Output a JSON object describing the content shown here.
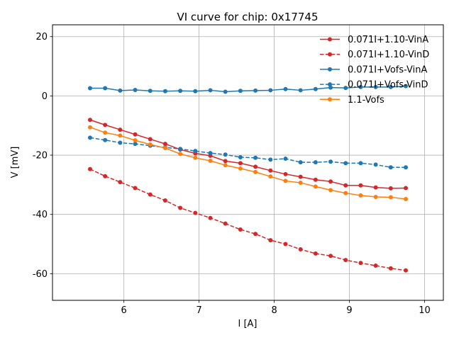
{
  "chart_data": {
    "type": "line",
    "title": "VI curve for chip: 0x17745",
    "xlabel": "I [A]",
    "ylabel": "V [mV]",
    "xlim": [
      5.05,
      10.25
    ],
    "ylim": [
      -69,
      24
    ],
    "xticks": [
      6,
      7,
      8,
      9,
      10
    ],
    "yticks": [
      -60,
      -40,
      -20,
      0,
      20
    ],
    "grid": true,
    "legend_position": "top-right",
    "x": [
      5.55,
      5.75,
      5.95,
      6.15,
      6.35,
      6.55,
      6.75,
      6.95,
      7.15,
      7.35,
      7.55,
      7.75,
      7.95,
      8.15,
      8.35,
      8.55,
      8.75,
      8.95,
      9.15,
      9.35,
      9.55,
      9.75
    ],
    "series": [
      {
        "name": "0.071I+1.10-VinA",
        "color": "#d62728",
        "dash": "solid",
        "values": [
          -8.1,
          -9.8,
          -11.4,
          -13.0,
          -14.6,
          -16.2,
          -18.1,
          -19.4,
          -20.2,
          -22.0,
          -22.7,
          -23.9,
          -25.2,
          -26.4,
          -27.3,
          -28.3,
          -28.9,
          -30.2,
          -30.2,
          -30.9,
          -31.2,
          -31.1
        ]
      },
      {
        "name": "0.071I+1.10-VinD",
        "color": "#d62728",
        "dash": "dashed",
        "values": [
          -24.7,
          -27.1,
          -29.1,
          -31.1,
          -33.3,
          -35.3,
          -37.8,
          -39.5,
          -41.2,
          -43.1,
          -45.1,
          -46.6,
          -48.7,
          -50.0,
          -51.8,
          -53.2,
          -54.0,
          -55.4,
          -56.4,
          -57.3,
          -58.2,
          -58.9
        ]
      },
      {
        "name": "0.071I+Vofs-VinA",
        "color": "#1f77b4",
        "dash": "solid",
        "values": [
          2.6,
          2.6,
          1.8,
          2.0,
          1.7,
          1.6,
          1.7,
          1.6,
          1.9,
          1.4,
          1.7,
          1.8,
          1.9,
          2.3,
          1.9,
          2.3,
          2.8,
          2.7,
          3.0,
          3.0,
          3.0,
          3.3
        ]
      },
      {
        "name": "0.071I+Vofs-VinD",
        "color": "#1f77b4",
        "dash": "dashed",
        "values": [
          -14.1,
          -14.9,
          -15.8,
          -16.2,
          -16.8,
          -17.4,
          -17.9,
          -18.6,
          -19.3,
          -19.8,
          -20.7,
          -20.9,
          -21.5,
          -21.2,
          -22.4,
          -22.4,
          -22.2,
          -22.7,
          -22.7,
          -23.2,
          -24.1,
          -24.1
        ]
      },
      {
        "name": "1.1-Vofs",
        "color": "#ff7f0e",
        "dash": "solid",
        "values": [
          -10.6,
          -12.4,
          -13.4,
          -15.0,
          -16.4,
          -17.6,
          -19.6,
          -20.9,
          -21.9,
          -23.4,
          -24.5,
          -25.7,
          -27.2,
          -28.7,
          -29.3,
          -30.6,
          -31.8,
          -32.8,
          -33.6,
          -34.1,
          -34.2,
          -34.8
        ]
      }
    ]
  }
}
